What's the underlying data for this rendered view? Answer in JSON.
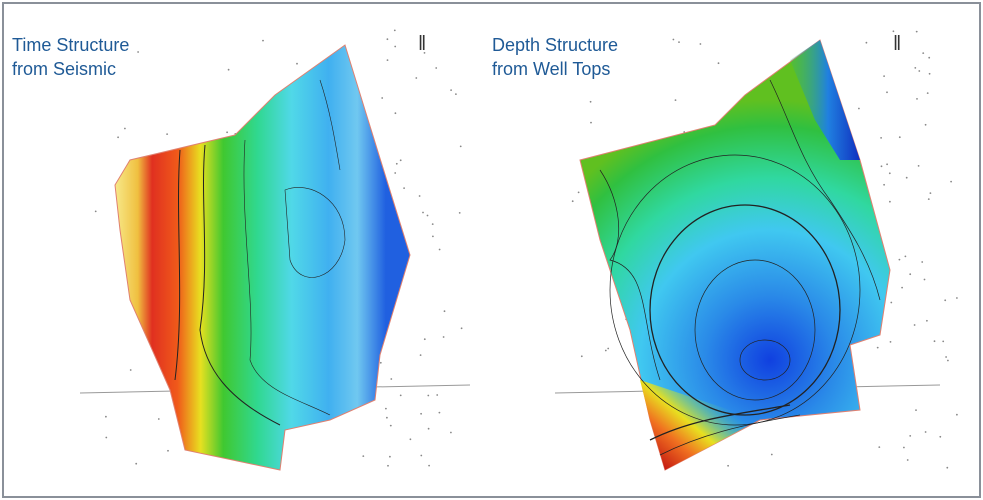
{
  "panels": [
    {
      "title": [
        "Time Structure",
        "from Seismic"
      ]
    },
    {
      "title": [
        "Depth Structure",
        "from Well Tops"
      ]
    }
  ]
}
